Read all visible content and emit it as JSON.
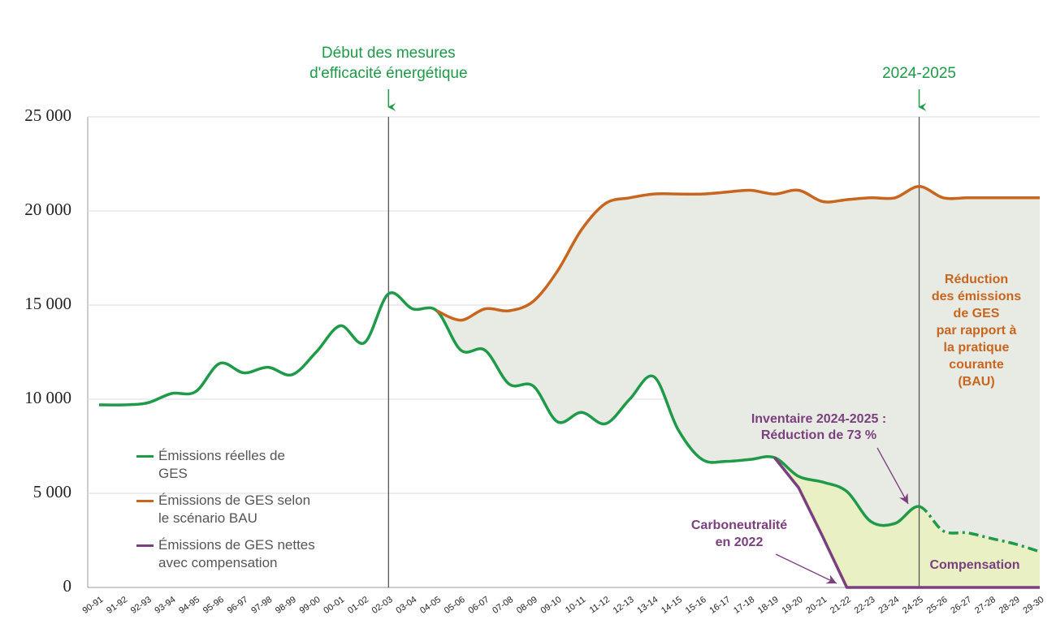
{
  "chart_data": {
    "type": "line",
    "categories": [
      "90-91",
      "91-92",
      "92-93",
      "93-94",
      "94-95",
      "95-96",
      "96-97",
      "97-98",
      "98-99",
      "99-00",
      "00-01",
      "01-02",
      "02-03",
      "03-04",
      "04-05",
      "05-06",
      "06-07",
      "07-08",
      "08-09",
      "09-10",
      "10-11",
      "11-12",
      "12-13",
      "13-14",
      "14-15",
      "15-16",
      "16-17",
      "17-18",
      "18-19",
      "19-20",
      "20-21",
      "21-22",
      "22-23",
      "23-24",
      "24-25",
      "25-26",
      "26-27",
      "27-28",
      "28-29",
      "29-30"
    ],
    "series": [
      {
        "name": "Émissions réelles de GES",
        "color": "#1e9a48",
        "smooth": true,
        "dashed_from_index": 34,
        "values": [
          9700,
          9700,
          9800,
          10300,
          10400,
          11900,
          11400,
          11700,
          11300,
          12500,
          13900,
          13000,
          15600,
          14800,
          14700,
          12600,
          12600,
          10800,
          10700,
          8800,
          9300,
          8700,
          10000,
          11200,
          8400,
          6800,
          6700,
          6800,
          6900,
          5900,
          5600,
          5100,
          3500,
          3400,
          4300,
          3000,
          2900,
          2600,
          2300,
          1900
        ]
      },
      {
        "name": "Émissions de GES selon le scénario BAU",
        "color": "#c8651e",
        "smooth": true,
        "values": [
          null,
          null,
          null,
          null,
          null,
          null,
          null,
          null,
          null,
          null,
          null,
          null,
          null,
          null,
          14700,
          14200,
          14800,
          14700,
          15200,
          16800,
          19000,
          20400,
          20700,
          20900,
          20900,
          20900,
          21000,
          21100,
          20900,
          21100,
          20500,
          20600,
          20700,
          20700,
          21300,
          20700,
          20700,
          20700,
          20700,
          20700
        ]
      },
      {
        "name": "Émissions de GES nettes avec compensation",
        "color": "#7b3f7f",
        "smooth": false,
        "values": [
          null,
          null,
          null,
          null,
          null,
          null,
          null,
          null,
          null,
          null,
          null,
          null,
          null,
          null,
          null,
          null,
          null,
          null,
          null,
          null,
          null,
          null,
          null,
          null,
          null,
          null,
          null,
          null,
          6900,
          5300,
          2700,
          0,
          0,
          0,
          0,
          0,
          0,
          0,
          0,
          0
        ]
      }
    ],
    "fills": {
      "reduction": "#e8ebe3",
      "compensation": "#e9f0c4"
    },
    "ylim": [
      0,
      25000
    ],
    "yticks": [
      0,
      {
        "value": 5000,
        "label": "5 000"
      },
      {
        "value": 10000,
        "label": "10 000"
      },
      {
        "value": 15000,
        "label": "15 000"
      },
      {
        "value": 20000,
        "label": "20 000"
      },
      {
        "value": 25000,
        "label": "25 000"
      }
    ],
    "grid": true,
    "legend": "lower left",
    "annotations": {
      "start_label": [
        "Début des mesures",
        "d'efficacité énergétique"
      ],
      "start_index": 12,
      "inventory_label": "2024-2025",
      "inventory_index": 34,
      "bau_reduction": [
        "Réduction",
        "des émissions",
        "de GES",
        "par rapport à",
        "la pratique",
        "courante",
        "(BAU)"
      ],
      "inventory_note": [
        "Inventaire 2024-2025 :",
        "Réduction de 73 %"
      ],
      "neutrality_note": [
        "Carboneutralité",
        "en 2022"
      ],
      "compensation": "Compensation"
    }
  }
}
